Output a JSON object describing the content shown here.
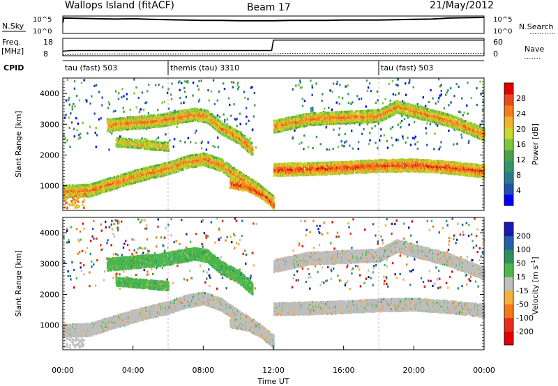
{
  "header": {
    "station": "Wallops Island (fitACF)",
    "beam": "Beam 17",
    "date": "21/May/2012"
  },
  "noise_panel": {
    "left_label": "N.Sky",
    "right_label": "N.Search",
    "left_ticks": [
      "10^5",
      "10^0"
    ],
    "right_ticks": [
      "10^5",
      "10^0"
    ],
    "sky_series": [
      [
        0.0,
        3.2
      ],
      [
        0.05,
        4.6
      ],
      [
        1,
        4.5
      ],
      [
        2,
        4.4
      ],
      [
        3,
        4.3
      ],
      [
        4,
        4.4
      ],
      [
        5,
        4.2
      ],
      [
        6,
        4.1
      ],
      [
        7,
        4.0
      ],
      [
        8,
        3.9
      ],
      [
        9,
        3.9
      ],
      [
        10,
        3.8
      ],
      [
        11,
        3.8
      ],
      [
        12,
        3.8
      ],
      [
        13,
        3.9
      ],
      [
        14,
        3.9
      ],
      [
        15,
        3.9
      ],
      [
        16,
        4.0
      ],
      [
        17,
        4.0
      ],
      [
        18,
        4.0
      ],
      [
        19,
        4.1
      ],
      [
        20,
        4.2
      ],
      [
        21,
        4.3
      ],
      [
        22,
        4.6
      ],
      [
        23,
        4.7
      ],
      [
        24,
        4.8
      ]
    ]
  },
  "freq_panel": {
    "left_label": "Freq.",
    "left_units": "[MHz]",
    "right_label": "Nave",
    "left_ticks": [
      "18",
      "8"
    ],
    "right_ticks": [
      "60",
      "0"
    ],
    "freq_series": [
      [
        0,
        10.6
      ],
      [
        0.5,
        11.0
      ],
      [
        11.9,
        11.0
      ],
      [
        12.0,
        17.0
      ],
      [
        24,
        17.0
      ]
    ],
    "nave_series": [
      [
        0,
        3
      ],
      [
        1,
        6
      ],
      [
        12,
        6
      ],
      [
        12.5,
        8
      ],
      [
        24,
        8
      ]
    ]
  },
  "cpid_panel": {
    "label": "CPID",
    "modes": [
      {
        "label": "tau (fast) 503",
        "start": 0
      },
      {
        "label": "themis (tau) 3310",
        "start": 6
      },
      {
        "label": "tau (fast) 503",
        "start": 18
      }
    ]
  },
  "chart_data": [
    {
      "type": "heatmap",
      "name": "power",
      "ylabel": "Slant Range [km]",
      "yticks": [
        "1000",
        "2000",
        "3000",
        "4000"
      ],
      "ylim": [
        200,
        4500
      ],
      "xlim": [
        0,
        24
      ],
      "colorbar_label": "Power [dB]",
      "colorbar_ticks": [
        "4",
        "8",
        "12",
        "16",
        "20",
        "24",
        "28"
      ],
      "colors": [
        "#0000ff",
        "#1f4fb0",
        "#2a7a90",
        "#33936b",
        "#4aa14a",
        "#7cc83a",
        "#c8d832",
        "#f0b429",
        "#f57b1d",
        "#ea4a1a",
        "#e00000"
      ],
      "bands": [
        {
          "x": [
            0.0,
            1.5,
            3,
            4.5,
            6,
            7,
            8,
            9,
            10,
            11,
            12
          ],
          "y": [
            850,
            880,
            1150,
            1400,
            1600,
            1800,
            1900,
            1700,
            1300,
            950,
            500
          ],
          "width": 130,
          "level": 8
        },
        {
          "x": [
            2.5,
            3.5,
            4.5,
            5.5,
            6.5,
            7.5,
            8.2,
            9,
            10,
            10.8
          ],
          "y": [
            3000,
            3050,
            3100,
            3150,
            3250,
            3350,
            3280,
            2900,
            2600,
            2200
          ],
          "width": 140,
          "level": 8
        },
        {
          "x": [
            3,
            4,
            5,
            6
          ],
          "y": [
            2450,
            2400,
            2350,
            2300
          ],
          "width": 120,
          "level": 7
        },
        {
          "x": [
            12,
            14,
            16,
            18,
            20,
            22,
            24
          ],
          "y": [
            1550,
            1580,
            1620,
            1680,
            1700,
            1620,
            1500
          ],
          "width": 170,
          "level": 9
        },
        {
          "x": [
            12,
            14,
            16,
            18,
            19,
            20,
            22,
            24
          ],
          "y": [
            2950,
            3200,
            3250,
            3300,
            3600,
            3450,
            3150,
            2700
          ],
          "width": 160,
          "level": 8
        },
        {
          "x": [
            9.5,
            10.5,
            11.5,
            12
          ],
          "y": [
            1100,
            1000,
            700,
            400
          ],
          "width": 110,
          "level": 9
        }
      ]
    },
    {
      "type": "heatmap",
      "name": "velocity",
      "ylabel": "Slant Range [km]",
      "yticks": [
        "1000",
        "2000",
        "3000",
        "4000"
      ],
      "ylim": [
        200,
        4500
      ],
      "xlim": [
        0,
        24
      ],
      "xlabel": "Time UT",
      "xticks": [
        "00:00",
        "04:00",
        "08:00",
        "12:00",
        "16:00",
        "20:00",
        "00:00"
      ],
      "colorbar_label": "Velocity [m s",
      "colorbar_label_sup": "-1",
      "colorbar_ticks": [
        "200",
        "100",
        "50",
        "15",
        "-15",
        "-50",
        "-100",
        "-200"
      ],
      "colors": [
        "#1a1ab0",
        "#2460a8",
        "#2f8f5a",
        "#4ab84a",
        "#bebebe",
        "#f5b03a",
        "#f57a1a",
        "#e82d17",
        "#e00000"
      ],
      "bands": [
        {
          "x": [
            0.0,
            1.5,
            3,
            4.5,
            6,
            7,
            8,
            9,
            10,
            11,
            12
          ],
          "y": [
            850,
            880,
            1150,
            1400,
            1600,
            1800,
            1900,
            1700,
            1300,
            950,
            500
          ],
          "width": 130,
          "level": 4
        },
        {
          "x": [
            2.5,
            3.5,
            4.5,
            5.5,
            6.5,
            7.5,
            8.2,
            9,
            10,
            10.8
          ],
          "y": [
            3000,
            3050,
            3100,
            3150,
            3250,
            3350,
            3280,
            2900,
            2600,
            2200
          ],
          "width": 150,
          "level": 3
        },
        {
          "x": [
            3,
            4,
            5,
            6
          ],
          "y": [
            2450,
            2400,
            2350,
            2300
          ],
          "width": 120,
          "level": 3
        },
        {
          "x": [
            12,
            14,
            16,
            18,
            20,
            22,
            24
          ],
          "y": [
            1550,
            1580,
            1620,
            1680,
            1700,
            1620,
            1500
          ],
          "width": 170,
          "level": 4
        },
        {
          "x": [
            12,
            14,
            16,
            18,
            19,
            20,
            22,
            24
          ],
          "y": [
            2950,
            3200,
            3250,
            3300,
            3600,
            3450,
            3150,
            2700
          ],
          "width": 170,
          "level": 4
        },
        {
          "x": [
            9.5,
            10.5,
            11.5,
            12
          ],
          "y": [
            1100,
            1000,
            700,
            400
          ],
          "width": 110,
          "level": 4
        }
      ]
    }
  ]
}
